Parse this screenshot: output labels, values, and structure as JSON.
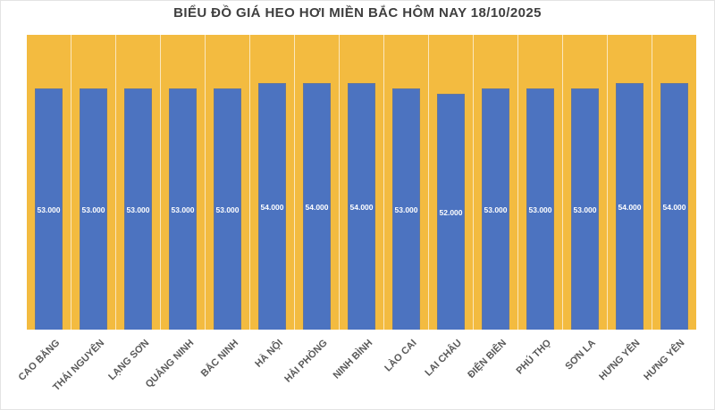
{
  "chart_data": {
    "type": "bar",
    "title": "BIỂU ĐỒ GIÁ HEO HƠI MIỀN BẮC HÔM NAY 18/10/2025",
    "categories": [
      "CAO BẰNG",
      "THÁI NGUYÊN",
      "LẠNG SƠN",
      "QUẢNG NINH",
      "BẮC NINH",
      "HÀ NỘI",
      "HẢI PHÒNG",
      "NINH BÌNH",
      "LÀO CAI",
      "LAI CHÂU",
      "ĐIỆN BIÊN",
      "PHÚ THỌ",
      "SƠN LA",
      "HƯNG YÊN",
      "HƯNG YÊN"
    ],
    "values": [
      53000,
      53000,
      53000,
      53000,
      53000,
      54000,
      54000,
      54000,
      53000,
      52000,
      53000,
      53000,
      53000,
      54000,
      54000
    ],
    "value_labels": [
      "53.000",
      "53.000",
      "53.000",
      "53.000",
      "53.000",
      "54.000",
      "54.000",
      "54.000",
      "53.000",
      "52.000",
      "53.000",
      "53.000",
      "53.000",
      "54.000",
      "54.000"
    ],
    "xlabel": "",
    "ylabel": "",
    "ylim": [
      8000,
      63000
    ],
    "grid": "vertical-category-separators",
    "legend": "none",
    "value_label_position": "inside-center",
    "colors": {
      "bar_fill": "#4C73C0",
      "bar_border": "#7A7A7A",
      "plot_background": "#F3BB40",
      "gridline": "#FFFFFF",
      "title_text": "#3F3F3F",
      "axis_label_text": "#595959",
      "value_label_text": "#FFFFFF",
      "page_background": "#FFFFFF"
    }
  }
}
